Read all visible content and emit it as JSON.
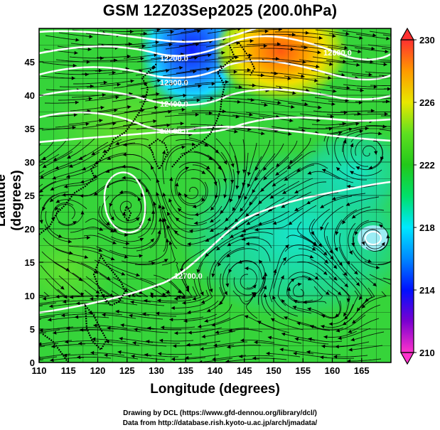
{
  "title": "GSM 12Z03Sep2025 (200.0hPa)",
  "x_axis": {
    "label": "Longitude (degrees)",
    "ticks": [
      "110",
      "115",
      "120",
      "125",
      "130",
      "135",
      "140",
      "145",
      "150",
      "155",
      "160",
      "165"
    ],
    "range": [
      110,
      170
    ]
  },
  "y_axis": {
    "label": "Latitude  (degrees)",
    "ticks": [
      "0",
      "5",
      "10",
      "15",
      "20",
      "25",
      "30",
      "35",
      "40",
      "45"
    ],
    "range": [
      0,
      50
    ]
  },
  "colorbar": {
    "labels": [
      "230",
      "226",
      "222",
      "218",
      "214",
      "210"
    ],
    "range": [
      210,
      230
    ],
    "stops": [
      {
        "v": 210,
        "c": "#ff33cc"
      },
      {
        "v": 212,
        "c": "#7a00d0"
      },
      {
        "v": 214,
        "c": "#0010ff"
      },
      {
        "v": 216,
        "c": "#0088ff"
      },
      {
        "v": 218,
        "c": "#00e8ff"
      },
      {
        "v": 220,
        "c": "#00e06a"
      },
      {
        "v": 222,
        "c": "#22c81a"
      },
      {
        "v": 224,
        "c": "#5ee020"
      },
      {
        "v": 226,
        "c": "#e8e800"
      },
      {
        "v": 228,
        "c": "#ff9a00"
      },
      {
        "v": 230,
        "c": "#ff3030"
      }
    ]
  },
  "contour_labels": [
    "12200.0",
    "12300.0",
    "12400.0",
    "12500.0",
    "12600.0",
    "12700.0"
  ],
  "credits": [
    "Drawing by DCL (https://www.gfd-dennou.org/library/dcl/)",
    "Data from http://database.rish.kyoto-u.ac.jp/arch/jmadata/"
  ]
}
